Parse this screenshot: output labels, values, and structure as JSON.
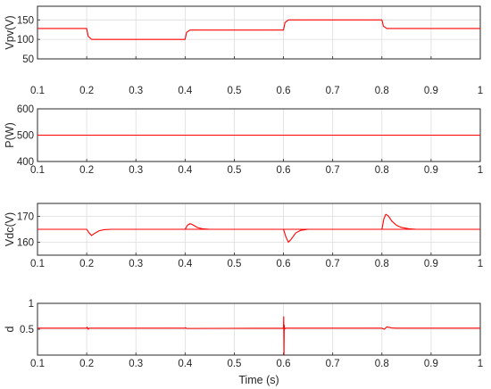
{
  "chart_data": [
    {
      "type": "line",
      "ylabel": "Vpv(V)",
      "xlabel": "",
      "xlim": [
        0.1,
        1
      ],
      "ylim": [
        50,
        185
      ],
      "xticks": [
        "0.1",
        "0.2",
        "0.3",
        "0.4",
        "0.5",
        "0.6",
        "0.7",
        "0.8",
        "0.9",
        "1"
      ],
      "yticks": [
        {
          "value": 50,
          "label": "50"
        },
        {
          "value": 100,
          "label": "100"
        },
        {
          "value": 150,
          "label": "150"
        }
      ],
      "grid": true,
      "series": [
        {
          "color": "#ff0000",
          "x": [
            0.1,
            0.2,
            0.203,
            0.21,
            0.4,
            0.403,
            0.41,
            0.6,
            0.603,
            0.61,
            0.8,
            0.803,
            0.81,
            1.0
          ],
          "y": [
            128,
            128,
            108,
            100,
            100,
            118,
            124,
            124,
            143,
            150,
            150,
            134,
            128,
            128
          ]
        }
      ]
    },
    {
      "type": "line",
      "ylabel": "P(W)",
      "xlabel": "",
      "xlim": [
        0.1,
        1
      ],
      "ylim": [
        400,
        600
      ],
      "xticks": [
        "0.1",
        "0.2",
        "0.3",
        "0.4",
        "0.5",
        "0.6",
        "0.7",
        "0.8",
        "0.9",
        "1"
      ],
      "yticks": [
        {
          "value": 400,
          "label": "400"
        },
        {
          "value": 500,
          "label": "500"
        },
        {
          "value": 600,
          "label": "600"
        }
      ],
      "grid": true,
      "series": [
        {
          "color": "#ff0000",
          "x": [
            0.1,
            1.0
          ],
          "y": [
            500,
            500
          ]
        }
      ]
    },
    {
      "type": "line",
      "ylabel": "Vdc(V)",
      "xlabel": "",
      "xlim": [
        0.1,
        1
      ],
      "ylim": [
        155,
        175
      ],
      "xticks": [
        "0.1",
        "0.2",
        "0.3",
        "0.4",
        "0.5",
        "0.6",
        "0.7",
        "0.8",
        "0.9",
        "1"
      ],
      "yticks": [
        {
          "value": 160,
          "label": "160"
        },
        {
          "value": 170,
          "label": "170"
        }
      ],
      "grid": true,
      "series": [
        {
          "color": "#ff0000",
          "x": [
            0.1,
            0.2,
            0.205,
            0.21,
            0.215,
            0.225,
            0.235,
            0.25,
            1.0
          ],
          "y": [
            165,
            165,
            163.6,
            162.6,
            163.3,
            164.4,
            164.85,
            165,
            165
          ]
        },
        {
          "color": "#ff0000",
          "x": [
            0.4,
            0.405,
            0.41,
            0.415,
            0.425,
            0.435,
            0.45
          ],
          "y": [
            165,
            166.6,
            167.2,
            166.8,
            165.7,
            165.2,
            165
          ]
        },
        {
          "color": "#ff0000",
          "x": [
            0.6,
            0.605,
            0.61,
            0.615,
            0.625,
            0.635,
            0.65
          ],
          "y": [
            165,
            162.0,
            160.0,
            161.0,
            163.6,
            164.6,
            165
          ]
        },
        {
          "color": "#ff0000",
          "x": [
            0.8,
            0.804,
            0.808,
            0.813,
            0.82,
            0.83,
            0.84,
            0.855,
            0.87
          ],
          "y": [
            165,
            169.0,
            170.8,
            170.2,
            168.2,
            166.5,
            165.7,
            165.2,
            165
          ]
        }
      ]
    },
    {
      "type": "line",
      "ylabel": "d",
      "xlabel": "Time (s)",
      "xlim": [
        0.1,
        1
      ],
      "ylim": [
        0,
        1
      ],
      "xticks": [
        "0.1",
        "0.2",
        "0.3",
        "0.4",
        "0.5",
        "0.6",
        "0.7",
        "0.8",
        "0.9",
        "1"
      ],
      "yticks": [
        {
          "value": 0.5,
          "label": "0.5"
        },
        {
          "value": 1,
          "label": "1"
        }
      ],
      "grid": true,
      "series": [
        {
          "color": "#ff0000",
          "x": [
            0.1,
            0.2,
            0.201,
            0.203,
            0.205,
            0.4,
            0.401,
            0.403,
            0.6,
            0.6005,
            0.601,
            0.6015,
            0.602,
            0.604,
            0.8,
            0.805,
            0.81,
            0.815,
            0.82,
            0.83,
            1.0
          ],
          "y": [
            0.52,
            0.52,
            0.54,
            0.5,
            0.52,
            0.52,
            0.53,
            0.515,
            0.52,
            0.74,
            0.01,
            0.58,
            0.5,
            0.52,
            0.52,
            0.5,
            0.545,
            0.535,
            0.525,
            0.52,
            0.52
          ]
        }
      ]
    }
  ]
}
